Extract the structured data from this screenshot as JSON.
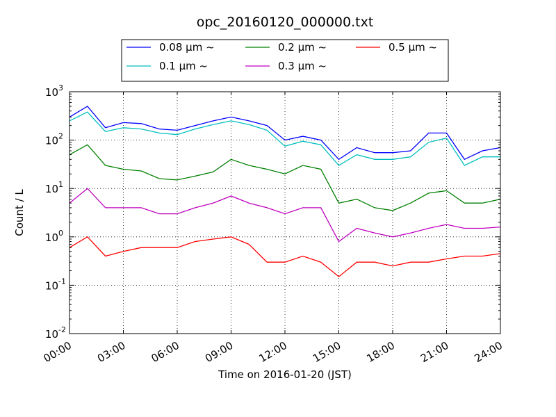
{
  "chart_data": {
    "type": "line",
    "title": "opc_20160120_000000.txt",
    "xlabel": "Time on 2016-01-20 (JST)",
    "ylabel": "Count / L",
    "y_scale": "log",
    "xlim": [
      "00:00",
      "24:00"
    ],
    "ylim": [
      0.01,
      1000
    ],
    "x_ticks": [
      "00:00",
      "03:00",
      "06:00",
      "09:00",
      "12:00",
      "15:00",
      "18:00",
      "21:00",
      "24:00"
    ],
    "y_ticks": [
      {
        "base": "10",
        "exp": "-2"
      },
      {
        "base": "10",
        "exp": "-1"
      },
      {
        "base": "10",
        "exp": "0"
      },
      {
        "base": "10",
        "exp": "1"
      },
      {
        "base": "10",
        "exp": "2"
      },
      {
        "base": "10",
        "exp": "3"
      }
    ],
    "grid": true,
    "legend_position": "top-center",
    "x": [
      "00:00",
      "01:00",
      "02:00",
      "03:00",
      "04:00",
      "05:00",
      "06:00",
      "07:00",
      "08:00",
      "09:00",
      "10:00",
      "11:00",
      "12:00",
      "13:00",
      "14:00",
      "15:00",
      "16:00",
      "17:00",
      "18:00",
      "19:00",
      "20:00",
      "21:00",
      "22:00",
      "23:00",
      "24:00"
    ],
    "series": [
      {
        "name": "0.08 μm ~",
        "color": "#0000ff",
        "values": [
          300,
          500,
          180,
          230,
          220,
          170,
          160,
          200,
          250,
          300,
          250,
          200,
          100,
          120,
          100,
          40,
          70,
          55,
          55,
          60,
          140,
          140,
          40,
          60,
          70
        ]
      },
      {
        "name": "0.1 μm ~",
        "color": "#00bfbf",
        "values": [
          250,
          380,
          150,
          180,
          170,
          140,
          130,
          170,
          210,
          250,
          210,
          160,
          75,
          95,
          80,
          30,
          50,
          40,
          40,
          45,
          90,
          110,
          30,
          45,
          45
        ]
      },
      {
        "name": "0.2 μm ~",
        "color": "#008000",
        "values": [
          50,
          80,
          30,
          25,
          23,
          16,
          15,
          18,
          22,
          40,
          30,
          25,
          20,
          30,
          25,
          5,
          6,
          4,
          3.5,
          5,
          8,
          9,
          5,
          5,
          6
        ]
      },
      {
        "name": "0.3 μm ~",
        "color": "#bf00bf",
        "values": [
          5,
          10,
          4,
          4,
          4,
          3,
          3,
          4,
          5,
          7,
          5,
          4,
          3,
          4,
          4,
          0.8,
          1.5,
          1.2,
          1,
          1.2,
          1.5,
          1.8,
          1.5,
          1.5,
          1.6
        ]
      },
      {
        "name": "0.5 μm ~",
        "color": "#ff0000",
        "values": [
          0.6,
          1.0,
          0.4,
          0.5,
          0.6,
          0.6,
          0.6,
          0.8,
          0.9,
          1.0,
          0.7,
          0.3,
          0.3,
          0.4,
          0.3,
          0.15,
          0.3,
          0.3,
          0.25,
          0.3,
          0.3,
          0.35,
          0.4,
          0.4,
          0.45
        ]
      }
    ]
  }
}
